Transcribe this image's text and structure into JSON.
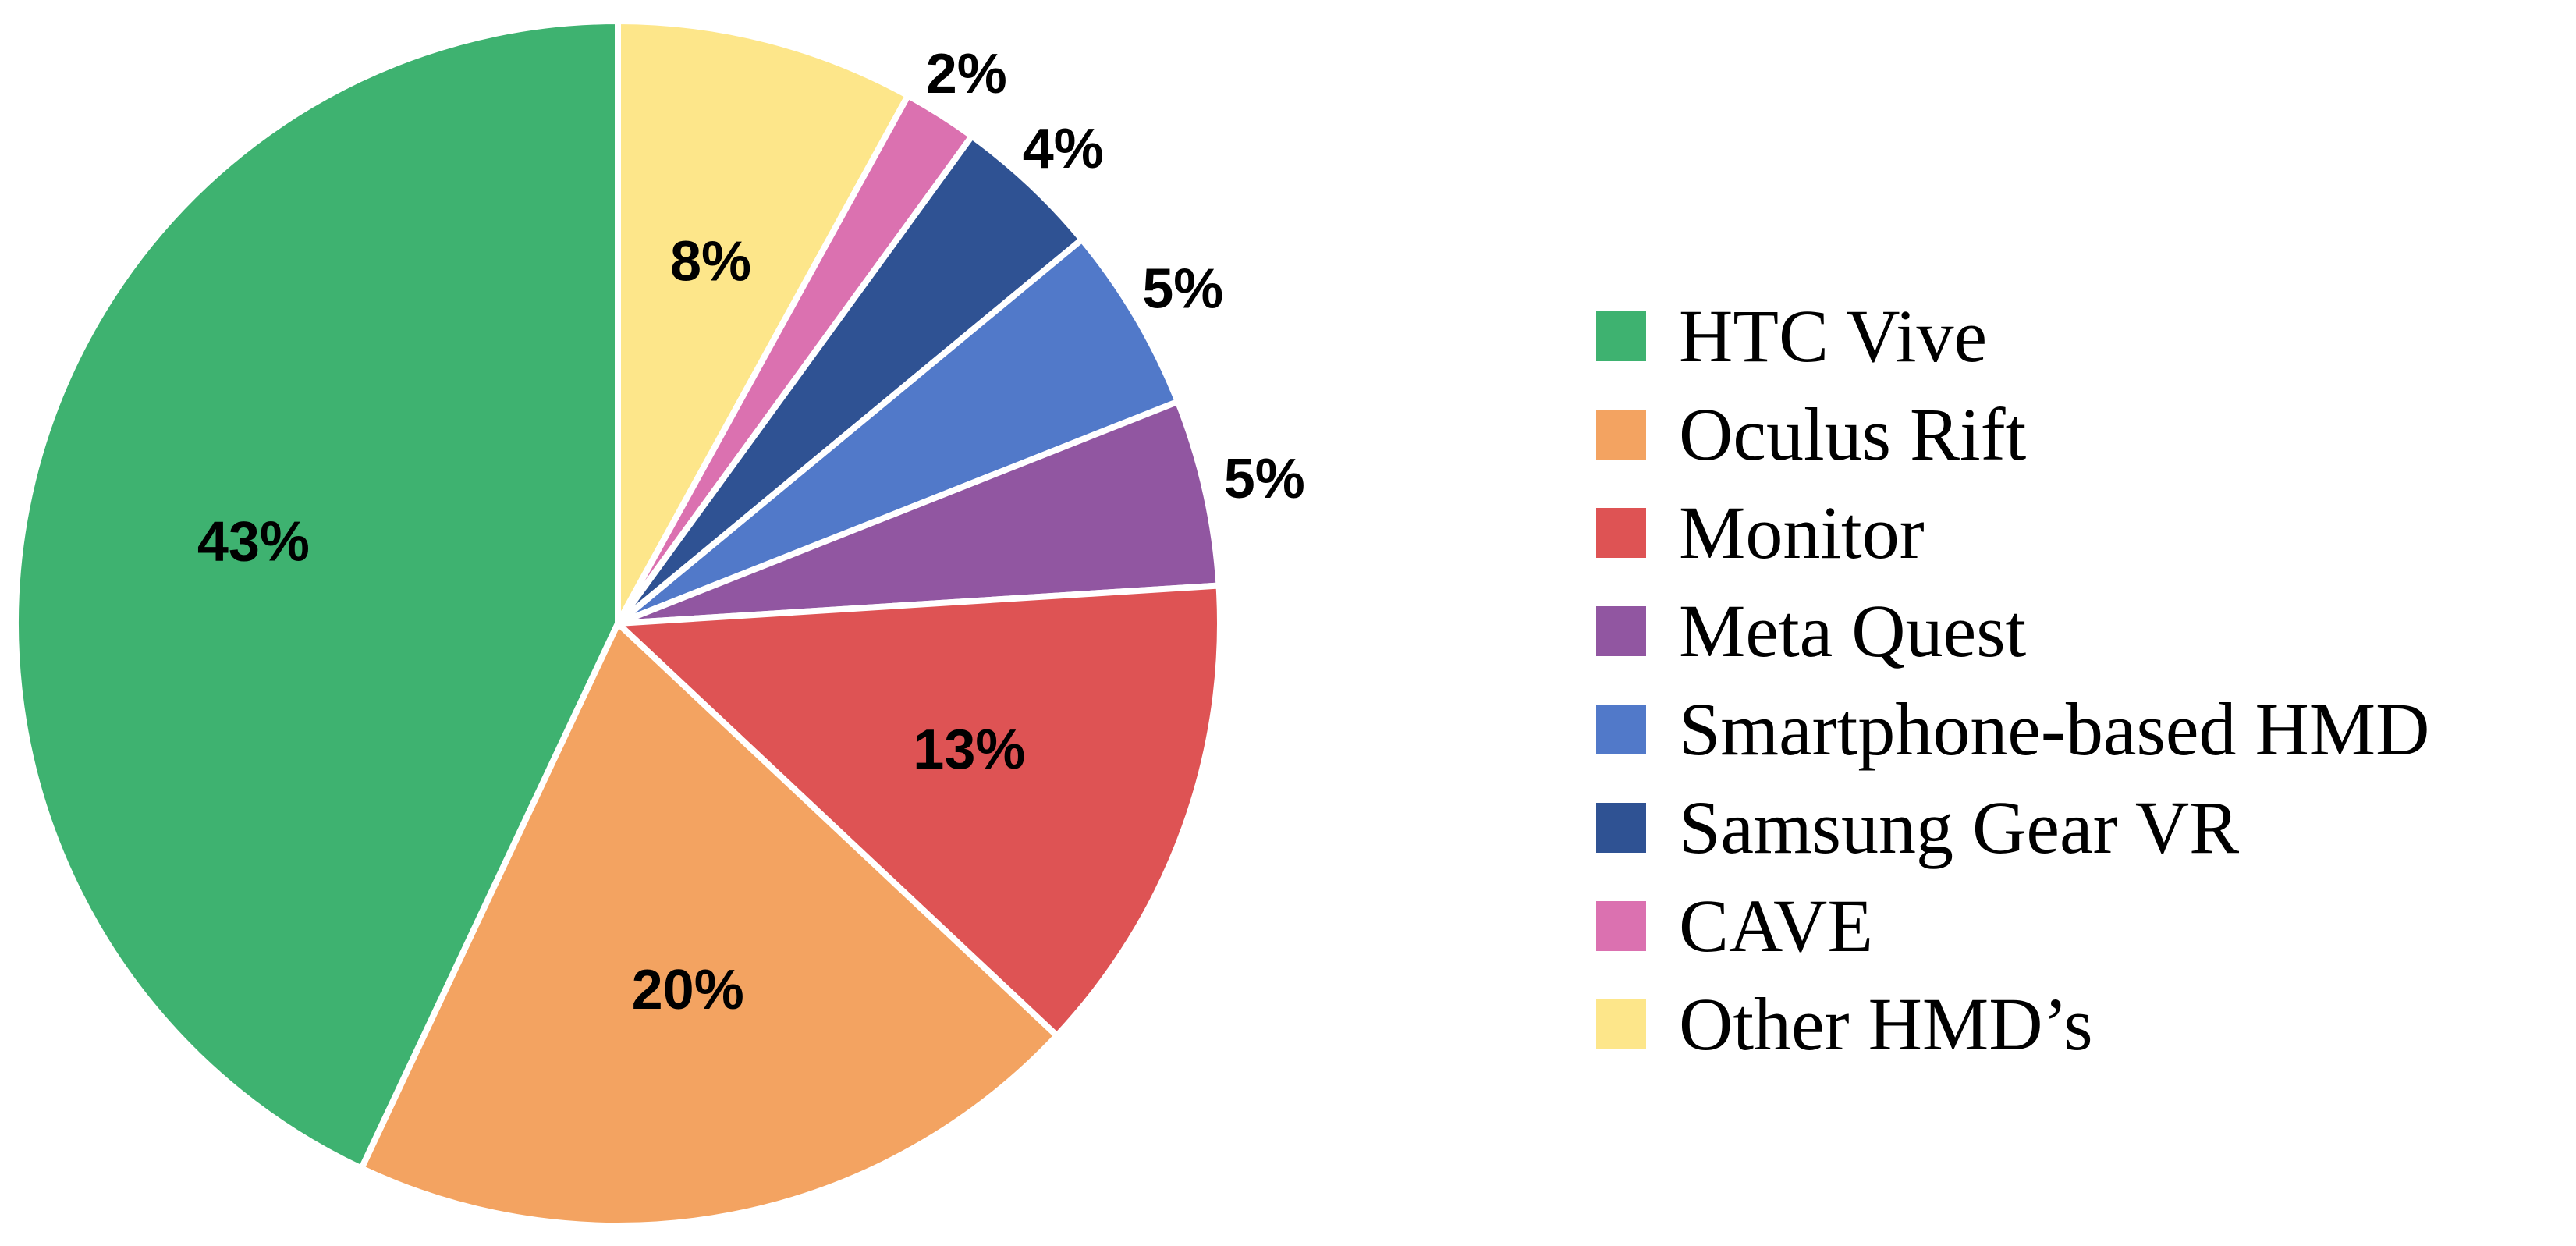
{
  "chart_data": {
    "type": "pie",
    "title": "",
    "start_angle_deg": 90,
    "direction": "clockwise",
    "legend_position": "right",
    "series": [
      {
        "label": "Other HMD’s",
        "value": 8,
        "display": "8%",
        "color": "#FDE68A"
      },
      {
        "label": "CAVE",
        "value": 2,
        "display": "2%",
        "color": "#DB71B0"
      },
      {
        "label": "Samsung Gear VR",
        "value": 4,
        "display": "4%",
        "color": "#2F5293"
      },
      {
        "label": "Smartphone-based HMD",
        "value": 5,
        "display": "5%",
        "color": "#5179C9"
      },
      {
        "label": "Meta Quest",
        "value": 5,
        "display": "5%",
        "color": "#9156A1"
      },
      {
        "label": "Monitor",
        "value": 13,
        "display": "13%",
        "color": "#DE5354"
      },
      {
        "label": "Oculus Rift",
        "value": 20,
        "display": "20%",
        "color": "#F3A361"
      },
      {
        "label": "HTC Vive",
        "value": 43,
        "display": "43%",
        "color": "#3EB270"
      }
    ],
    "legend": [
      {
        "label": "HTC Vive",
        "color": "#3EB270"
      },
      {
        "label": "Oculus Rift",
        "color": "#F3A361"
      },
      {
        "label": "Monitor",
        "color": "#DE5354"
      },
      {
        "label": "Meta Quest",
        "color": "#9156A1"
      },
      {
        "label": "Smartphone-based HMD",
        "color": "#5179C9"
      },
      {
        "label": "Samsung Gear VR",
        "color": "#2F5293"
      },
      {
        "label": "CAVE",
        "color": "#DB71B0"
      },
      {
        "label": "Other HMD’s",
        "color": "#FDE68A"
      }
    ]
  }
}
